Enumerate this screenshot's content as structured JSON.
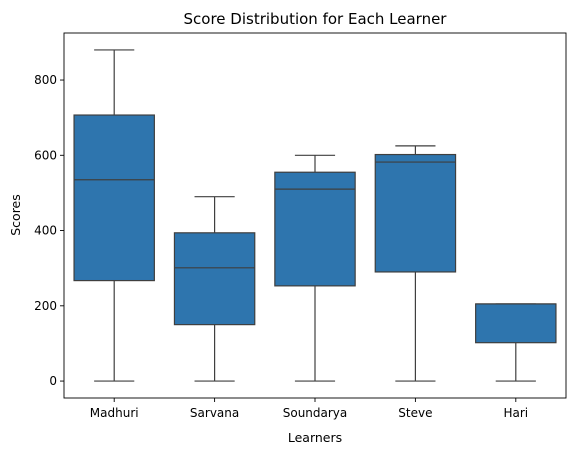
{
  "chart_data": {
    "type": "box",
    "title": "Score Distribution for Each Learner",
    "xlabel": "Learners",
    "ylabel": "Scores",
    "ylim": [
      -45,
      925
    ],
    "yticks": [
      0,
      200,
      400,
      600,
      800
    ],
    "grid": false,
    "box_color": "#2e75ae",
    "line_color": "#3f3f3f",
    "categories": [
      "Madhuri",
      "Sarvana",
      "Soundarya",
      "Steve",
      "Hari"
    ],
    "boxes": [
      {
        "category": "Madhuri",
        "min": 0,
        "q1": 267,
        "median": 535,
        "q3": 707,
        "max": 880
      },
      {
        "category": "Sarvana",
        "min": 0,
        "q1": 150,
        "median": 301,
        "q3": 394,
        "max": 490
      },
      {
        "category": "Soundarya",
        "min": 0,
        "q1": 253,
        "median": 510,
        "q3": 555,
        "max": 600
      },
      {
        "category": "Steve",
        "min": 0,
        "q1": 290,
        "median": 582,
        "q3": 602,
        "max": 625
      },
      {
        "category": "Hari",
        "min": 0,
        "q1": 102,
        "median": 205,
        "q3": 205,
        "max": 205
      }
    ]
  }
}
